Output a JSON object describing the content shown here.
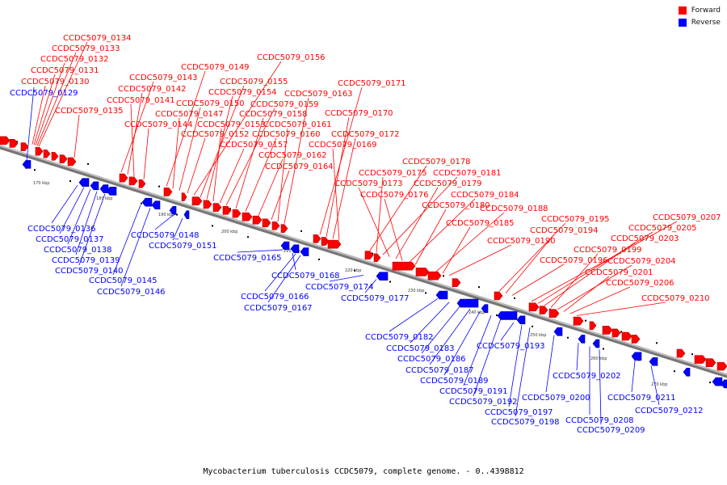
{
  "legend": {
    "forward_label": "Forward",
    "reverse_label": "Reverse",
    "forward_color": "#ff0000",
    "reverse_color": "#0000ff"
  },
  "caption": "Mycobacterium tuberculosis CCDC5079, complete genome. - 0..4398812",
  "ticks": [
    "170 kbp",
    "180 kbp",
    "190 kbp",
    "200 kbp",
    "210 kbp",
    "220 kbp",
    "230 kbp",
    "240 kbp",
    "250 kbp",
    "260 kbp",
    "270 kbp"
  ],
  "forward_labels": [
    "CCDC5079_0134",
    "CCDC5079_0133",
    "CCDC5079_0132",
    "CCDC5079_0131",
    "CCDC5079_0130",
    "CCDC5079_0135",
    "CCDC5079_0143",
    "CCDC5079_0142",
    "CCDC5079_0141",
    "CCDC5079_0144",
    "CCDC5079_0149",
    "CCDC5079_0147",
    "CCDC5079_0150",
    "CCDC5079_0152",
    "CCDC5079_0156",
    "CCDC5079_0155",
    "CCDC5079_0154",
    "CCDC5079_0153",
    "CCDC5079_0157",
    "CCDC5079_0159",
    "CCDC5079_0158",
    "CCDC5079_0160",
    "CCDC5079_0162",
    "CCDC5079_0164",
    "CCDC5079_0163",
    "CCDC5079_0161",
    "CCDC5079_0171",
    "CCDC5079_0170",
    "CCDC5079_0172",
    "CCDC5079_0169",
    "CCDC5079_0178",
    "CCDC5079_0175",
    "CCDC5079_0181",
    "CCDC5079_0173",
    "CCDC5079_0179",
    "CCDC5079_0176",
    "CCDC5079_0184",
    "CCDC5079_0180",
    "CCDC5079_0188",
    "CCDC5079_0185",
    "CCDC5079_0190",
    "CCDC5079_0195",
    "CCDC5079_0194",
    "CCDC5079_0196",
    "CCDC5079_0207",
    "CCDC5079_0205",
    "CCDC5079_0203",
    "CCDC5079_0199",
    "CCDC5079_0204",
    "CCDC5079_0201",
    "CCDC5079_0206",
    "CCDC5079_0210"
  ],
  "reverse_labels": [
    "CCDC5079_0129",
    "CCDC5079_0136",
    "CCDC5079_0137",
    "CCDC5079_0138",
    "CCDC5079_0139",
    "CCDC5079_0140",
    "CCDC5079_0145",
    "CCDC5079_0146",
    "CCDC5079_0148",
    "CCDC5079_0151",
    "CCDC5079_0165",
    "CCDC5079_0168",
    "CCDC5079_0166",
    "CCDC5079_0167",
    "CCDC5079_0174",
    "CCDC5079_0177",
    "CCDC5079_0182",
    "CCDC5079_0183",
    "CCDC5079_0186",
    "CCDC5079_0187",
    "CCDC5079_0189",
    "CCDC5079_0191",
    "CCDC5079_0192",
    "CCDC5079_0193",
    "CCDC5079_0197",
    "CCDC5079_0198",
    "CCDC5079_0200",
    "CCDC5079_0202",
    "CCDC5079_0208",
    "CCDC5079_0209",
    "CCDC5079_0211",
    "CCDC5079_0212"
  ]
}
